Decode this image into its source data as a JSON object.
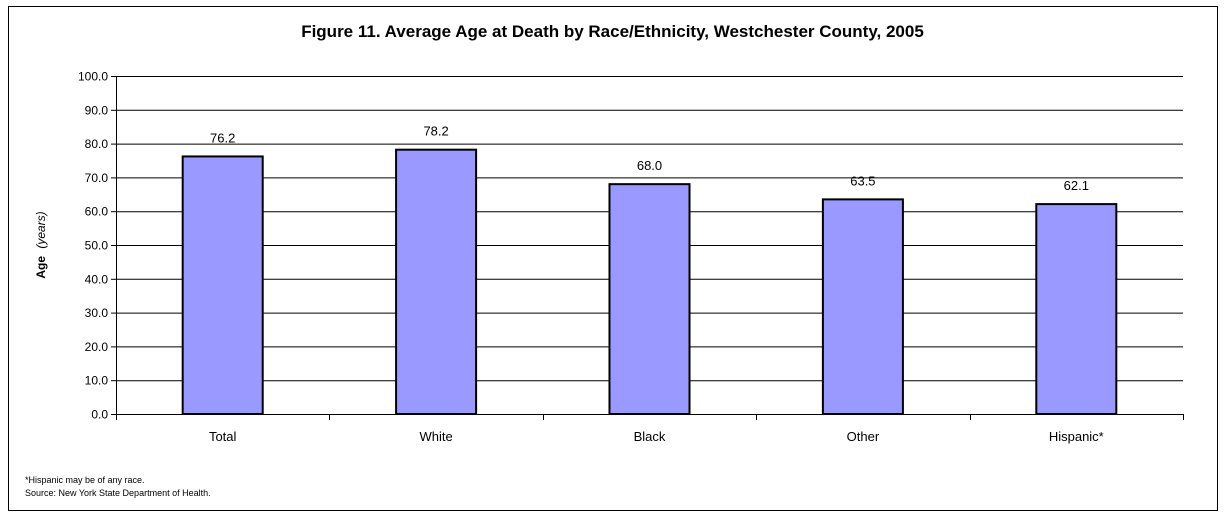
{
  "chart_data": {
    "type": "bar",
    "title": "Figure 11. Average Age at Death by Race/Ethnicity, Westchester County, 2005",
    "ylabel_main": "Age",
    "ylabel_unit": "(years)",
    "xlabel": "",
    "categories": [
      "Total",
      "White",
      "Black",
      "Other",
      "Hispanic*"
    ],
    "values": [
      76.2,
      78.2,
      68.0,
      63.5,
      62.1
    ],
    "value_labels": [
      "76.2",
      "78.2",
      "68.0",
      "63.5",
      "62.1"
    ],
    "ylim": [
      0,
      100
    ],
    "yticks": [
      "0.0",
      "10.0",
      "20.0",
      "30.0",
      "40.0",
      "50.0",
      "60.0",
      "70.0",
      "80.0",
      "90.0",
      "100.0"
    ],
    "grid": true,
    "legend": "none",
    "colors": {
      "bar_fill": "#9999ff",
      "bar_stroke": "#000000",
      "gridline": "#000000"
    }
  },
  "notes": {
    "footnote": "*Hispanic may be of any race.",
    "source": "Source: New York State Department of Health."
  }
}
